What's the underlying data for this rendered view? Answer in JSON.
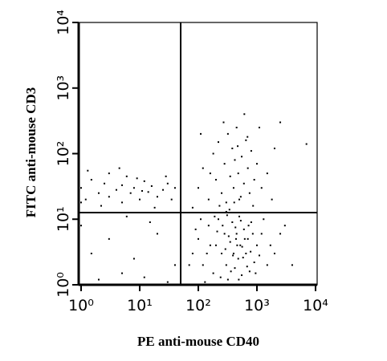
{
  "chart_data": {
    "type": "scatter",
    "xlabel": "PE anti-mouse CD40",
    "ylabel": "FITC anti-mouse CD3",
    "xlog": true,
    "ylog": true,
    "color": "#000000",
    "xlim": [
      1,
      10000
    ],
    "ylim": [
      1,
      10000
    ],
    "xticks": [
      {
        "value": 1,
        "label": "10⁰"
      },
      {
        "value": 10,
        "label": "10¹"
      },
      {
        "value": 100,
        "label": "10²"
      },
      {
        "value": 1000,
        "label": "10³"
      },
      {
        "value": 10000,
        "label": "10⁴"
      }
    ],
    "yticks": [
      {
        "value": 1,
        "label": "10⁰"
      },
      {
        "value": 10,
        "label": "10¹"
      },
      {
        "value": 100,
        "label": "10²"
      },
      {
        "value": 1000,
        "label": "10³"
      },
      {
        "value": 10000,
        "label": "10⁴"
      }
    ],
    "quadrant_x": 50,
    "quadrant_y": 12.6,
    "x": [
      1,
      1.2,
      1.5,
      2,
      2.5,
      3,
      3,
      4,
      5,
      5,
      6,
      7,
      8,
      10,
      12,
      14,
      16,
      20,
      25,
      30,
      35,
      40,
      1,
      1.3,
      2.2,
      9,
      18,
      28,
      4.5,
      11,
      1,
      1.5,
      2,
      3,
      5,
      8,
      12,
      20,
      30,
      40,
      15,
      6,
      80,
      100,
      120,
      150,
      180,
      200,
      220,
      250,
      280,
      300,
      320,
      350,
      380,
      400,
      420,
      450,
      480,
      500,
      520,
      550,
      600,
      650,
      700,
      750,
      800,
      900,
      1000,
      1200,
      1500,
      2000,
      90,
      130,
      160,
      190,
      240,
      260,
      290,
      330,
      360,
      390,
      430,
      460,
      490,
      530,
      580,
      620,
      680,
      720,
      780,
      850,
      950,
      1100,
      1300,
      1700,
      110,
      140,
      210,
      310,
      440,
      560,
      70,
      2500,
      4000,
      3000,
      80,
      100,
      120,
      150,
      180,
      200,
      220,
      250,
      280,
      300,
      320,
      350,
      380,
      400,
      420,
      450,
      480,
      500,
      550,
      600,
      650,
      700,
      750,
      800,
      900,
      1000,
      1200,
      1500,
      2000,
      2500,
      110,
      160,
      230,
      270,
      340,
      410,
      470,
      530,
      610,
      690,
      860,
      1100,
      1800,
      300,
      7000
    ],
    "values": [
      30,
      20,
      40,
      25,
      35,
      22,
      50,
      28,
      18,
      33,
      45,
      25,
      30,
      20,
      38,
      26,
      32,
      22,
      28,
      35,
      20,
      30,
      18,
      55,
      16,
      42,
      15,
      45,
      60,
      27,
      8,
      3,
      1.2,
      5,
      1.5,
      2.5,
      1.3,
      6,
      1.1,
      2,
      9,
      11,
      3,
      5,
      2,
      8,
      1.5,
      4,
      10,
      3,
      6,
      2,
      1.2,
      4.5,
      9,
      3,
      1.8,
      6,
      2.5,
      11,
      4,
      1.4,
      7,
      3,
      5,
      1.6,
      9,
      2.2,
      4,
      6,
      2,
      3,
      7,
      1.1,
      4,
      11,
      1.3,
      8,
      3.5,
      5.5,
      1.6,
      2.8,
      7.5,
      4,
      1.2,
      9.5,
      2.6,
      5,
      1.9,
      8,
      3.2,
      6,
      1.5,
      2.8,
      10,
      4,
      10,
      3,
      6.5,
      11.5,
      5,
      3.8,
      2,
      6,
      2,
      8,
      15,
      30,
      60,
      20,
      100,
      40,
      150,
      25,
      70,
      18,
      200,
      45,
      120,
      30,
      80,
      250,
      50,
      20,
      90,
      35,
      160,
      60,
      25,
      110,
      40,
      70,
      30,
      50,
      120,
      300,
      200,
      50,
      16,
      300,
      14,
      18,
      130,
      22,
      400,
      180,
      16,
      250,
      20,
      13,
      140
    ]
  }
}
